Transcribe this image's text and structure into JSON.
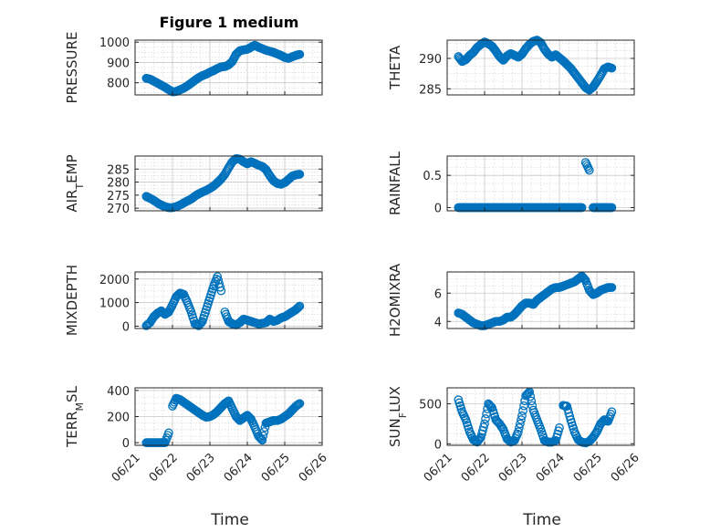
{
  "figure": {
    "title": "Figure 1 medium",
    "marker_color": "#0072BD",
    "x_tick_labels": [
      "06/21",
      "06/22",
      "06/23",
      "06/24",
      "06/25",
      "06/26"
    ],
    "x_axis_label": "Time"
  },
  "chart_data": [
    {
      "type": "scatter",
      "ylabel": "PRESSURE",
      "title": "Figure 1 medium",
      "xlim": [
        0,
        5
      ],
      "ylim": [
        740,
        1010
      ],
      "yticks": [
        800,
        900,
        1000
      ],
      "grid": true,
      "x": [
        0.3,
        0.4,
        0.5,
        0.6,
        0.7,
        0.8,
        0.9,
        1.0,
        1.1,
        1.2,
        1.3,
        1.4,
        1.5,
        1.6,
        1.7,
        1.8,
        1.9,
        2.0,
        2.1,
        2.2,
        2.3,
        2.4,
        2.5,
        2.6,
        2.7,
        2.8,
        2.9,
        3.0,
        3.1,
        3.2,
        3.3,
        3.4,
        3.5,
        3.6,
        3.7,
        3.8,
        3.9,
        4.0,
        4.1,
        4.2,
        4.3,
        4.4
      ],
      "y": [
        822,
        818,
        808,
        798,
        788,
        778,
        766,
        755,
        757,
        765,
        773,
        785,
        798,
        812,
        825,
        835,
        842,
        852,
        860,
        870,
        878,
        880,
        888,
        905,
        940,
        958,
        962,
        965,
        975,
        985,
        975,
        968,
        960,
        955,
        950,
        942,
        935,
        925,
        920,
        928,
        935,
        940
      ]
    },
    {
      "type": "scatter",
      "ylabel": "THETA",
      "xlim": [
        0,
        5
      ],
      "ylim": [
        284,
        293
      ],
      "yticks": [
        285,
        290
      ],
      "grid": true,
      "x": [
        0.3,
        0.4,
        0.5,
        0.6,
        0.7,
        0.8,
        0.9,
        1.0,
        1.1,
        1.2,
        1.3,
        1.4,
        1.5,
        1.6,
        1.7,
        1.8,
        1.9,
        2.0,
        2.1,
        2.2,
        2.3,
        2.4,
        2.5,
        2.6,
        2.7,
        2.8,
        2.9,
        3.0,
        3.1,
        3.2,
        3.3,
        3.4,
        3.5,
        3.6,
        3.7,
        3.8,
        3.9,
        4.0,
        4.1,
        4.2,
        4.3,
        4.4
      ],
      "y": [
        290.3,
        289.5,
        289.8,
        290.5,
        291.0,
        291.8,
        292.3,
        292.7,
        292.4,
        292.0,
        291.2,
        290.3,
        289.7,
        290.4,
        290.8,
        290.5,
        290.2,
        290.7,
        291.6,
        292.3,
        292.8,
        293.0,
        292.6,
        291.5,
        290.7,
        290.2,
        290.6,
        290.1,
        289.6,
        289.0,
        288.4,
        287.6,
        286.8,
        286.0,
        285.2,
        284.8,
        285.3,
        286.2,
        287.2,
        288.3,
        288.6,
        288.4
      ]
    },
    {
      "type": "scatter",
      "ylabel": "AIR_TEMP",
      "xlim": [
        0,
        5
      ],
      "ylim": [
        269,
        290
      ],
      "yticks": [
        270,
        275,
        280,
        285
      ],
      "grid": true,
      "x": [
        0.3,
        0.4,
        0.5,
        0.6,
        0.7,
        0.8,
        0.9,
        1.0,
        1.1,
        1.2,
        1.3,
        1.4,
        1.5,
        1.6,
        1.7,
        1.8,
        1.9,
        2.0,
        2.1,
        2.2,
        2.3,
        2.4,
        2.5,
        2.6,
        2.7,
        2.8,
        2.9,
        3.0,
        3.1,
        3.2,
        3.3,
        3.4,
        3.5,
        3.6,
        3.7,
        3.8,
        3.9,
        4.0,
        4.1,
        4.2,
        4.3,
        4.4
      ],
      "y": [
        274.5,
        273.8,
        273.0,
        272.0,
        271.2,
        270.6,
        270.2,
        270.2,
        270.6,
        271.2,
        272.0,
        272.8,
        273.5,
        274.6,
        275.5,
        276.2,
        276.8,
        277.6,
        278.5,
        279.8,
        281.2,
        283.0,
        285.5,
        287.8,
        289.0,
        288.8,
        287.8,
        287.0,
        287.8,
        287.2,
        286.5,
        286.0,
        284.8,
        282.5,
        280.5,
        279.5,
        279.2,
        279.8,
        281.0,
        282.3,
        282.8,
        283.0
      ]
    },
    {
      "type": "scatter",
      "ylabel": "RAINFALL",
      "xlim": [
        0,
        5
      ],
      "ylim": [
        -0.05,
        0.8
      ],
      "yticks": [
        0,
        0.5
      ],
      "grid": true,
      "x": [
        0.3,
        0.4,
        0.5,
        0.6,
        0.7,
        0.8,
        0.9,
        1.0,
        1.1,
        1.2,
        1.3,
        1.4,
        1.5,
        1.6,
        1.7,
        1.8,
        1.9,
        2.0,
        2.1,
        2.2,
        2.3,
        2.4,
        2.5,
        2.6,
        2.7,
        2.8,
        2.9,
        3.0,
        3.1,
        3.2,
        3.3,
        3.4,
        3.5,
        3.6,
        3.7,
        3.8,
        3.9,
        4.0,
        4.1,
        4.2,
        4.3,
        4.4
      ],
      "y": [
        0,
        0,
        0,
        0,
        0,
        0,
        0,
        0,
        0,
        0,
        0,
        0,
        0,
        0,
        0,
        0,
        0,
        0,
        0,
        0,
        0,
        0,
        0,
        0,
        0,
        0,
        0,
        0,
        0,
        0,
        0,
        0,
        0,
        0,
        0.7,
        0.58,
        0,
        0,
        0,
        0,
        0,
        0
      ]
    },
    {
      "type": "scatter",
      "ylabel": "MIXDEPTH",
      "xlim": [
        0,
        5
      ],
      "ylim": [
        -100,
        2300
      ],
      "yticks": [
        0,
        1000,
        2000
      ],
      "grid": true,
      "x": [
        0.3,
        0.4,
        0.5,
        0.6,
        0.7,
        0.8,
        0.9,
        1.0,
        1.1,
        1.2,
        1.3,
        1.4,
        1.5,
        1.6,
        1.7,
        1.8,
        1.9,
        2.0,
        2.1,
        2.2,
        2.3,
        2.4,
        2.5,
        2.6,
        2.7,
        2.8,
        2.9,
        3.0,
        3.1,
        3.2,
        3.3,
        3.4,
        3.5,
        3.6,
        3.7,
        3.8,
        3.9,
        4.0,
        4.1,
        4.2,
        4.3,
        4.4
      ],
      "y": [
        20,
        150,
        400,
        550,
        650,
        500,
        600,
        900,
        1250,
        1400,
        1350,
        1000,
        600,
        100,
        20,
        200,
        700,
        1200,
        1700,
        2100,
        1500,
        600,
        200,
        100,
        50,
        150,
        300,
        250,
        200,
        150,
        100,
        120,
        150,
        300,
        200,
        250,
        350,
        400,
        500,
        600,
        700,
        850
      ]
    },
    {
      "type": "scatter",
      "ylabel": "H2OMIXRA",
      "xlim": [
        0,
        5
      ],
      "ylim": [
        3.5,
        7.5
      ],
      "yticks": [
        4,
        6
      ],
      "grid": true,
      "x": [
        0.3,
        0.4,
        0.5,
        0.6,
        0.7,
        0.8,
        0.9,
        1.0,
        1.1,
        1.2,
        1.3,
        1.4,
        1.5,
        1.6,
        1.7,
        1.8,
        1.9,
        2.0,
        2.1,
        2.2,
        2.3,
        2.4,
        2.5,
        2.6,
        2.7,
        2.8,
        2.9,
        3.0,
        3.1,
        3.2,
        3.3,
        3.4,
        3.5,
        3.6,
        3.7,
        3.8,
        3.9,
        4.0,
        4.1,
        4.2,
        4.3,
        4.4
      ],
      "y": [
        4.6,
        4.5,
        4.3,
        4.1,
        3.9,
        3.8,
        3.7,
        3.7,
        3.8,
        3.9,
        4.0,
        4.0,
        4.1,
        4.3,
        4.3,
        4.5,
        4.8,
        5.1,
        5.3,
        5.3,
        5.2,
        5.5,
        5.7,
        5.9,
        6.1,
        6.3,
        6.4,
        6.4,
        6.5,
        6.6,
        6.7,
        6.8,
        7.0,
        7.2,
        6.9,
        6.2,
        5.9,
        6.0,
        6.2,
        6.3,
        6.4,
        6.4
      ]
    },
    {
      "type": "scatter",
      "ylabel": "TERR_MSL",
      "xlim": [
        0,
        5
      ],
      "ylim": [
        -20,
        420
      ],
      "yticks": [
        0,
        200,
        400
      ],
      "grid": true,
      "x": [
        0.3,
        0.4,
        0.5,
        0.6,
        0.7,
        0.8,
        0.9,
        1.0,
        1.1,
        1.2,
        1.3,
        1.4,
        1.5,
        1.6,
        1.7,
        1.8,
        1.9,
        2.0,
        2.1,
        2.2,
        2.3,
        2.4,
        2.5,
        2.6,
        2.7,
        2.8,
        2.9,
        3.0,
        3.1,
        3.2,
        3.3,
        3.4,
        3.5,
        3.6,
        3.7,
        3.8,
        3.9,
        4.0,
        4.1,
        4.2,
        4.3,
        4.4
      ],
      "y": [
        0,
        0,
        0,
        0,
        0,
        0,
        75,
        280,
        340,
        330,
        310,
        290,
        270,
        250,
        230,
        210,
        195,
        200,
        215,
        240,
        270,
        300,
        320,
        260,
        200,
        170,
        190,
        210,
        180,
        120,
        50,
        20,
        150,
        160,
        170,
        170,
        180,
        200,
        220,
        250,
        280,
        300
      ]
    },
    {
      "type": "scatter",
      "ylabel": "SUN_FLUX",
      "xlim": [
        0,
        5
      ],
      "ylim": [
        -20,
        700
      ],
      "yticks": [
        0,
        500
      ],
      "grid": true,
      "x": [
        0.3,
        0.4,
        0.5,
        0.6,
        0.7,
        0.8,
        0.9,
        1.0,
        1.1,
        1.2,
        1.3,
        1.4,
        1.5,
        1.6,
        1.7,
        1.8,
        1.9,
        2.0,
        2.1,
        2.2,
        2.3,
        2.4,
        2.5,
        2.6,
        2.7,
        2.8,
        2.9,
        3.0,
        3.1,
        3.2,
        3.3,
        3.4,
        3.5,
        3.6,
        3.7,
        3.8,
        3.9,
        4.0,
        4.1,
        4.2,
        4.3,
        4.4
      ],
      "y": [
        550,
        400,
        300,
        150,
        50,
        20,
        80,
        250,
        500,
        450,
        300,
        250,
        180,
        60,
        20,
        40,
        150,
        350,
        600,
        650,
        420,
        300,
        180,
        40,
        20,
        20,
        40,
        200,
        480,
        470,
        300,
        150,
        50,
        20,
        10,
        30,
        80,
        150,
        250,
        300,
        280,
        400
      ]
    }
  ]
}
